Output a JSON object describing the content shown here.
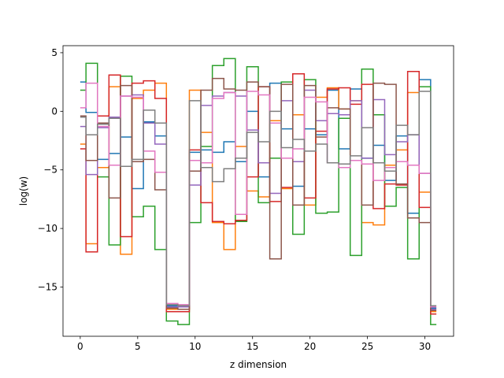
{
  "chart_data": {
    "type": "line",
    "drawstyle": "steps-mid",
    "title": "",
    "xlabel": "z dimension",
    "ylabel": "log(w)",
    "xlim": [
      -1.5,
      32.5
    ],
    "ylim": [
      -19.2,
      5.6
    ],
    "xticks": [
      0,
      5,
      10,
      15,
      20,
      25,
      30
    ],
    "yticks": [
      -15,
      -10,
      -5,
      0,
      5
    ],
    "ytick_labels": [
      "−15",
      "−10",
      "−5",
      "0",
      "5"
    ],
    "grid": false,
    "legend": "none",
    "x": [
      0,
      1,
      2,
      3,
      4,
      5,
      6,
      7,
      8,
      9,
      10,
      11,
      12,
      13,
      14,
      15,
      16,
      17,
      18,
      19,
      20,
      21,
      22,
      23,
      24,
      25,
      26,
      27,
      28,
      29,
      30,
      31
    ],
    "series": [
      {
        "color": "#1f77b4",
        "values": [
          2.5,
          -0.1,
          -4.1,
          -3.6,
          -2.2,
          -6.6,
          -0.9,
          -2.1,
          -16.6,
          -16.6,
          -3.5,
          -3.3,
          -3.5,
          -2.6,
          -4.3,
          0.0,
          -5.6,
          2.4,
          -1.5,
          -6.4,
          -1.5,
          -2.0,
          1.8,
          -3.2,
          1.9,
          -4.0,
          -2.9,
          -5.9,
          -2.1,
          -8.7,
          2.7,
          -16.8
        ]
      },
      {
        "color": "#ff7f0e",
        "values": [
          -2.8,
          -11.3,
          -4.8,
          2.1,
          -12.2,
          1.1,
          1.8,
          2.4,
          -16.9,
          -16.9,
          1.8,
          -1.8,
          -9.5,
          -11.8,
          -3.0,
          -6.8,
          -7.3,
          -0.8,
          -6.6,
          -0.3,
          -8.0,
          1.2,
          2.0,
          0.2,
          0.9,
          -9.5,
          -9.7,
          -4.6,
          -3.3,
          1.6,
          -6.9,
          -17.1
        ]
      },
      {
        "color": "#2ca02c",
        "values": [
          1.8,
          4.1,
          -5.6,
          -11.4,
          3.0,
          -9.0,
          -8.1,
          -11.8,
          -17.9,
          -18.2,
          -9.5,
          -3.0,
          3.9,
          4.5,
          -9.4,
          3.8,
          -7.8,
          -4.0,
          2.5,
          -10.5,
          2.7,
          -8.7,
          -8.6,
          -0.6,
          -12.3,
          3.6,
          -0.3,
          -8.1,
          -6.5,
          -12.6,
          2.1,
          -18.2
        ]
      },
      {
        "color": "#d62728",
        "values": [
          -3.2,
          -12.0,
          -0.4,
          3.1,
          -10.7,
          2.4,
          2.6,
          1.1,
          -17.1,
          -17.1,
          -3.3,
          -7.8,
          -9.4,
          -9.6,
          -9.3,
          -5.6,
          2.1,
          -7.7,
          -6.5,
          3.2,
          -7.4,
          -1.7,
          1.9,
          2.0,
          0.6,
          2.3,
          -8.3,
          -6.2,
          -6.3,
          3.4,
          -8.2,
          -17.3
        ]
      },
      {
        "color": "#9467bd",
        "values": [
          -1.3,
          -5.4,
          -1.4,
          -0.5,
          1.3,
          1.4,
          -1.0,
          -2.8,
          -16.7,
          -16.7,
          -6.3,
          0.5,
          1.3,
          1.6,
          1.3,
          -1.6,
          -4.4,
          -7.0,
          0.9,
          -4.3,
          1.8,
          -0.8,
          -0.2,
          -0.3,
          0.9,
          -4.0,
          1.0,
          -3.7,
          -2.6,
          -2.0,
          -5.3,
          -16.9
        ]
      },
      {
        "color": "#8c564b",
        "values": [
          -0.4,
          -4.2,
          -1.0,
          -7.4,
          2.2,
          -4.3,
          -4.1,
          -6.7,
          -16.8,
          -16.9,
          -5.1,
          1.8,
          2.8,
          1.9,
          1.8,
          2.5,
          2.1,
          -12.6,
          2.3,
          -8.0,
          2.2,
          -2.2,
          0.3,
          0.2,
          -4.2,
          -8.0,
          2.4,
          2.3,
          -6.2,
          -9.1,
          -9.5,
          -17.0
        ]
      },
      {
        "color": "#e377c2",
        "values": [
          0.3,
          2.4,
          -1.3,
          -4.6,
          1.3,
          1.2,
          -3.4,
          -5.2,
          -16.4,
          -16.5,
          -4.2,
          -4.4,
          1.1,
          1.6,
          -8.8,
          1.7,
          1.4,
          -1.0,
          -4.0,
          -3.2,
          1.2,
          0.8,
          -4.4,
          -4.8,
          -4.2,
          -4.5,
          -5.9,
          -4.8,
          -4.3,
          -4.6,
          -5.3,
          -16.7
        ]
      },
      {
        "color": "#7f7f7f",
        "values": [
          -0.5,
          -2.0,
          -1.1,
          -0.6,
          -4.7,
          -4.1,
          0.1,
          -1.0,
          -16.5,
          -16.6,
          0.9,
          -4.8,
          -6.0,
          -4.9,
          -4.0,
          -1.8,
          -2.6,
          0.0,
          -3.1,
          -2.4,
          -3.4,
          -2.8,
          -4.4,
          -4.5,
          -3.8,
          -1.4,
          -4.4,
          -5.1,
          -1.2,
          -2.0,
          1.7,
          -16.6
        ]
      }
    ]
  }
}
